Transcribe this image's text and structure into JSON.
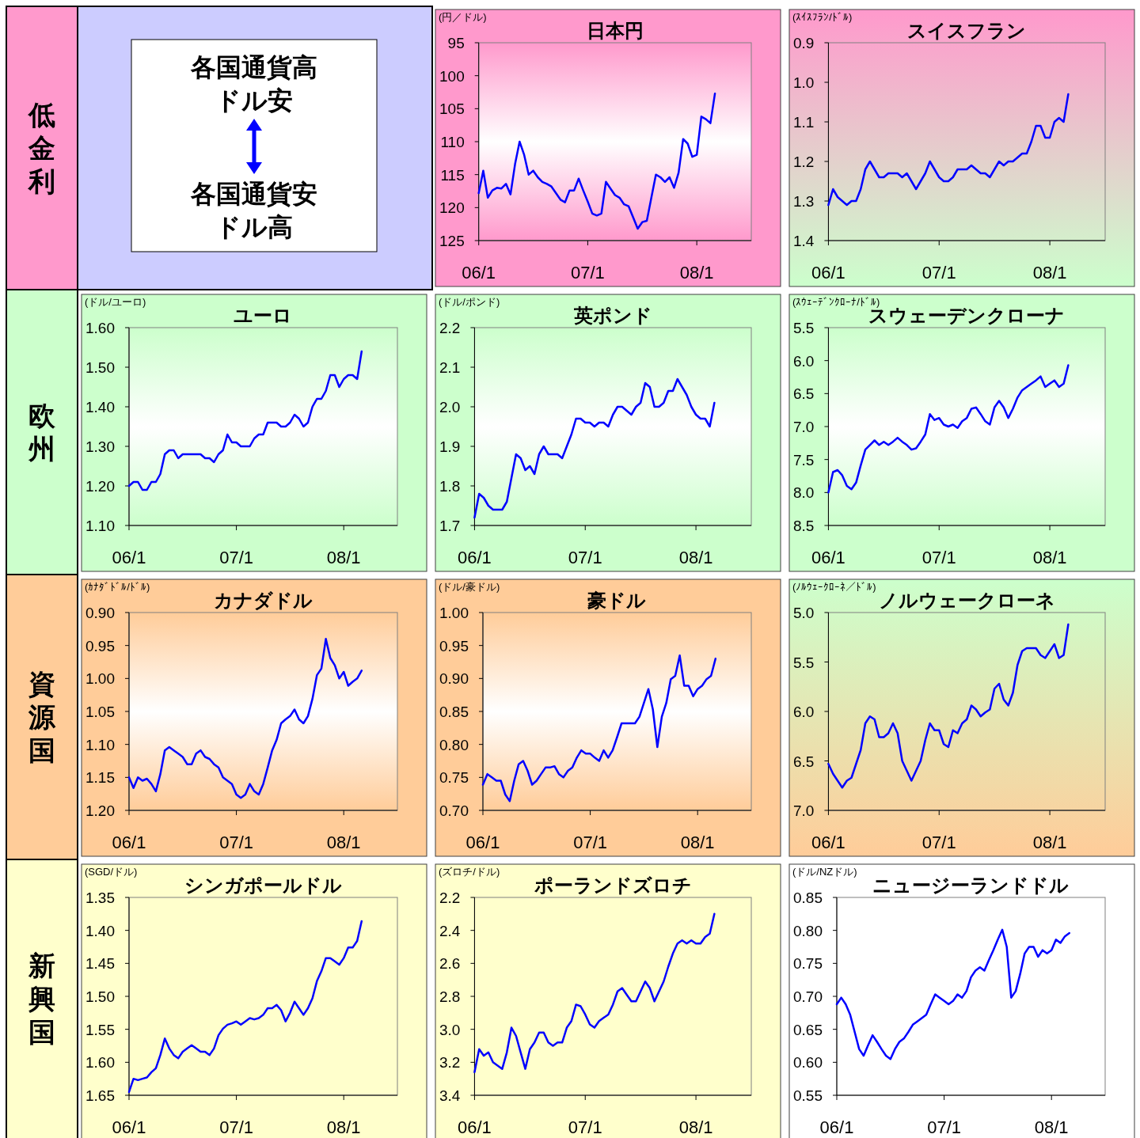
{
  "chart_data": [
    {
      "type": "other",
      "title": "低金利"
    },
    {
      "type": "other",
      "annotations": [
        "各国通貨高",
        "ドル安",
        "各国通貨安",
        "ドル高"
      ]
    },
    {
      "type": "line",
      "title": "日本円",
      "ylabel": "(円／ドル)",
      "color": "#0000ff",
      "ylim": [
        125,
        95
      ],
      "yticks": [
        95,
        100,
        105,
        110,
        115,
        120,
        125
      ],
      "categories": [
        "06/1",
        null,
        null,
        null,
        null,
        null,
        null,
        null,
        null,
        null,
        null,
        null,
        null,
        null,
        null,
        null,
        null,
        null,
        null,
        null,
        null,
        null,
        null,
        null,
        "07/1",
        null,
        null,
        null,
        null,
        null,
        null,
        null,
        null,
        null,
        null,
        null,
        null,
        null,
        null,
        null,
        null,
        null,
        null,
        null,
        null,
        null,
        null,
        null,
        "08/1",
        null,
        null,
        null,
        null,
        null,
        null,
        null,
        null,
        null,
        null,
        null,
        null
      ],
      "values": [
        117.8,
        114.4,
        118.5,
        117.4,
        117.0,
        117.1,
        116.4,
        118.0,
        113.4,
        110.0,
        112.0,
        115.0,
        114.4,
        115.4,
        116.1,
        116.4,
        116.8,
        117.8,
        118.8,
        119.2,
        117.4,
        117.4,
        115.6,
        117.4,
        119.1,
        120.9,
        121.2,
        120.9,
        116.1,
        117.1,
        118.1,
        118.5,
        119.5,
        119.8,
        121.5,
        123.2,
        122.2,
        122.0,
        118.5,
        115.0,
        115.4,
        116.1,
        115.4,
        117.0,
        114.7,
        109.6,
        110.3,
        112.3,
        112.0,
        106.2,
        106.6,
        107.2,
        102.7,
        null,
        null,
        null,
        null,
        null,
        null,
        null,
        null
      ]
    },
    {
      "type": "line",
      "title": "スイスフラン",
      "ylabel": "(ｽｲｽﾌﾗﾝ/ﾄﾞﾙ)",
      "color": "#0000ff",
      "ylim": [
        1.4,
        0.9
      ],
      "yticks": [
        0.9,
        {
          "value": 1,
          "label": "1.0"
        },
        1.1,
        1.2,
        1.3,
        1.4
      ],
      "categories": [
        "06/1",
        null,
        null,
        null,
        null,
        null,
        null,
        null,
        null,
        null,
        null,
        null,
        null,
        null,
        null,
        null,
        null,
        null,
        null,
        null,
        null,
        null,
        null,
        null,
        "07/1",
        null,
        null,
        null,
        null,
        null,
        null,
        null,
        null,
        null,
        null,
        null,
        null,
        null,
        null,
        null,
        null,
        null,
        null,
        null,
        null,
        null,
        null,
        null,
        "08/1",
        null,
        null,
        null,
        null,
        null,
        null,
        null,
        null,
        null,
        null,
        null,
        null
      ],
      "values": [
        1.31,
        1.27,
        1.29,
        1.3,
        1.31,
        1.3,
        1.3,
        1.27,
        1.22,
        1.2,
        1.22,
        1.24,
        1.24,
        1.23,
        1.23,
        1.23,
        1.24,
        1.23,
        1.25,
        1.27,
        1.25,
        1.23,
        1.2,
        1.22,
        1.24,
        1.25,
        1.25,
        1.24,
        1.22,
        1.22,
        1.22,
        1.21,
        1.22,
        1.23,
        1.23,
        1.24,
        1.22,
        1.2,
        1.21,
        1.2,
        1.2,
        1.19,
        1.18,
        1.18,
        1.15,
        1.11,
        1.11,
        1.14,
        1.14,
        1.1,
        1.09,
        1.1,
        1.03,
        null,
        null,
        null,
        null,
        null,
        null,
        null,
        null
      ]
    },
    {
      "type": "other",
      "title": "欧州"
    },
    {
      "type": "line",
      "title": "ユーロ",
      "ylabel": "(ドル/ユーロ)",
      "color": "#0000ff",
      "ylim": [
        1.1,
        1.6
      ],
      "yticks": [
        {
          "value": 1.6,
          "label": "1.60"
        },
        {
          "value": 1.5,
          "label": "1.50"
        },
        {
          "value": 1.4,
          "label": "1.40"
        },
        {
          "value": 1.3,
          "label": "1.30"
        },
        {
          "value": 1.2,
          "label": "1.20"
        },
        {
          "value": 1.1,
          "label": "1.10"
        }
      ],
      "categories": [
        "06/1",
        null,
        null,
        null,
        null,
        null,
        null,
        null,
        null,
        null,
        null,
        null,
        null,
        null,
        null,
        null,
        null,
        null,
        null,
        null,
        null,
        null,
        null,
        null,
        "07/1",
        null,
        null,
        null,
        null,
        null,
        null,
        null,
        null,
        null,
        null,
        null,
        null,
        null,
        null,
        null,
        null,
        null,
        null,
        null,
        null,
        null,
        null,
        null,
        "08/1",
        null,
        null,
        null,
        null,
        null,
        null,
        null,
        null,
        null,
        null,
        null,
        null
      ],
      "values": [
        1.2,
        1.21,
        1.21,
        1.19,
        1.19,
        1.21,
        1.21,
        1.23,
        1.28,
        1.29,
        1.29,
        1.27,
        1.28,
        1.28,
        1.28,
        1.28,
        1.28,
        1.27,
        1.27,
        1.26,
        1.28,
        1.29,
        1.33,
        1.31,
        1.31,
        1.3,
        1.3,
        1.3,
        1.32,
        1.33,
        1.33,
        1.36,
        1.36,
        1.36,
        1.35,
        1.35,
        1.36,
        1.38,
        1.37,
        1.35,
        1.36,
        1.4,
        1.42,
        1.42,
        1.44,
        1.48,
        1.48,
        1.45,
        1.47,
        1.48,
        1.48,
        1.47,
        1.54,
        null,
        null,
        null,
        null,
        null,
        null,
        null,
        null
      ]
    },
    {
      "type": "line",
      "title": "英ポンド",
      "ylabel": "(ドル/ポンド)",
      "color": "#0000ff",
      "ylim": [
        1.7,
        2.2
      ],
      "yticks": [
        2.2,
        2.1,
        {
          "value": 2,
          "label": "2.0"
        },
        1.9,
        1.8,
        1.7
      ],
      "categories": [
        "06/1",
        null,
        null,
        null,
        null,
        null,
        null,
        null,
        null,
        null,
        null,
        null,
        null,
        null,
        null,
        null,
        null,
        null,
        null,
        null,
        null,
        null,
        null,
        null,
        "07/1",
        null,
        null,
        null,
        null,
        null,
        null,
        null,
        null,
        null,
        null,
        null,
        null,
        null,
        null,
        null,
        null,
        null,
        null,
        null,
        null,
        null,
        null,
        null,
        "08/1",
        null,
        null,
        null,
        null,
        null,
        null,
        null,
        null,
        null,
        null,
        null,
        null
      ],
      "values": [
        1.72,
        1.78,
        1.77,
        1.75,
        1.74,
        1.74,
        1.74,
        1.76,
        1.82,
        1.88,
        1.87,
        1.84,
        1.85,
        1.83,
        1.88,
        1.9,
        1.88,
        1.88,
        1.88,
        1.87,
        1.9,
        1.93,
        1.97,
        1.97,
        1.96,
        1.96,
        1.95,
        1.96,
        1.96,
        1.95,
        1.98,
        2.0,
        2.0,
        1.99,
        1.98,
        2.0,
        2.01,
        2.06,
        2.05,
        2.0,
        2.0,
        2.01,
        2.04,
        2.04,
        2.07,
        2.05,
        2.03,
        2.0,
        1.98,
        1.97,
        1.97,
        1.95,
        2.01,
        null,
        null,
        null,
        null,
        null,
        null,
        null,
        null
      ]
    },
    {
      "type": "line",
      "title": "スウェーデンクローナ",
      "ylabel": "(ｽｳｪｰﾃﾞﾝｸﾛｰﾅ/ﾄﾞﾙ)",
      "color": "#0000ff",
      "ylim": [
        8.5,
        5.5
      ],
      "yticks": [
        5.5,
        {
          "value": 6,
          "label": "6.0"
        },
        6.5,
        {
          "value": 7,
          "label": "7.0"
        },
        7.5,
        {
          "value": 8,
          "label": "8.0"
        },
        8.5
      ],
      "categories": [
        "06/1",
        null,
        null,
        null,
        null,
        null,
        null,
        null,
        null,
        null,
        null,
        null,
        null,
        null,
        null,
        null,
        null,
        null,
        null,
        null,
        null,
        null,
        null,
        null,
        "07/1",
        null,
        null,
        null,
        null,
        null,
        null,
        null,
        null,
        null,
        null,
        null,
        null,
        null,
        null,
        null,
        null,
        null,
        null,
        null,
        null,
        null,
        null,
        null,
        "08/1",
        null,
        null,
        null,
        null,
        null,
        null,
        null,
        null,
        null,
        null,
        null,
        null
      ],
      "values": [
        8.0,
        7.69,
        7.66,
        7.74,
        7.9,
        7.95,
        7.85,
        7.59,
        7.35,
        7.28,
        7.21,
        7.28,
        7.23,
        7.28,
        7.23,
        7.17,
        7.23,
        7.28,
        7.35,
        7.33,
        7.23,
        7.12,
        6.81,
        6.9,
        6.87,
        6.97,
        7.0,
        6.97,
        7.02,
        6.92,
        6.87,
        6.73,
        6.71,
        6.81,
        6.92,
        6.97,
        6.71,
        6.61,
        6.71,
        6.87,
        6.73,
        6.56,
        6.45,
        6.4,
        6.35,
        6.3,
        6.24,
        6.4,
        6.35,
        6.3,
        6.4,
        6.35,
        6.07,
        null,
        null,
        null,
        null,
        null,
        null,
        null,
        null
      ]
    },
    {
      "type": "other",
      "title": "資源国"
    },
    {
      "type": "line",
      "title": "カナダドル",
      "ylabel": "(ｶﾅﾀﾞﾄﾞﾙ/ﾄﾞﾙ)",
      "color": "#0000ff",
      "ylim": [
        1.2,
        0.9
      ],
      "yticks": [
        {
          "value": 0.9,
          "label": "0.90"
        },
        0.95,
        {
          "value": 1,
          "label": "1.00"
        },
        1.05,
        {
          "value": 1.1,
          "label": "1.10"
        },
        1.15,
        {
          "value": 1.2,
          "label": "1.20"
        }
      ],
      "categories": [
        "06/1",
        null,
        null,
        null,
        null,
        null,
        null,
        null,
        null,
        null,
        null,
        null,
        null,
        null,
        null,
        null,
        null,
        null,
        null,
        null,
        null,
        null,
        null,
        null,
        "07/1",
        null,
        null,
        null,
        null,
        null,
        null,
        null,
        null,
        null,
        null,
        null,
        null,
        null,
        null,
        null,
        null,
        null,
        null,
        null,
        null,
        null,
        null,
        null,
        "08/1",
        null,
        null,
        null,
        null,
        null,
        null,
        null,
        null,
        null,
        null,
        null,
        null
      ],
      "values": [
        1.15,
        1.166,
        1.15,
        1.155,
        1.152,
        1.16,
        1.171,
        1.145,
        1.109,
        1.104,
        1.109,
        1.114,
        1.119,
        1.13,
        1.13,
        1.114,
        1.109,
        1.119,
        1.122,
        1.13,
        1.135,
        1.15,
        1.155,
        1.16,
        1.176,
        1.181,
        1.176,
        1.16,
        1.171,
        1.176,
        1.16,
        1.135,
        1.109,
        1.093,
        1.068,
        1.062,
        1.057,
        1.047,
        1.062,
        1.068,
        1.057,
        1.031,
        0.995,
        0.985,
        0.94,
        0.969,
        0.98,
        1.0,
        0.99,
        1.011,
        1.005,
        1.0,
        0.988,
        null,
        null,
        null,
        null,
        null,
        null,
        null,
        null
      ]
    },
    {
      "type": "line",
      "title": "豪ドル",
      "ylabel": "(ドル/豪ドル)",
      "color": "#0000ff",
      "ylim": [
        0.7,
        1.0
      ],
      "yticks": [
        {
          "value": 1,
          "label": "1.00"
        },
        0.95,
        {
          "value": 0.9,
          "label": "0.90"
        },
        0.85,
        {
          "value": 0.8,
          "label": "0.80"
        },
        0.75,
        {
          "value": 0.7,
          "label": "0.70"
        }
      ],
      "categories": [
        "06/1",
        null,
        null,
        null,
        null,
        null,
        null,
        null,
        null,
        null,
        null,
        null,
        null,
        null,
        null,
        null,
        null,
        null,
        null,
        null,
        null,
        null,
        null,
        null,
        "07/1",
        null,
        null,
        null,
        null,
        null,
        null,
        null,
        null,
        null,
        null,
        null,
        null,
        null,
        null,
        null,
        null,
        null,
        null,
        null,
        null,
        null,
        null,
        null,
        "08/1",
        null,
        null,
        null,
        null,
        null,
        null,
        null,
        null,
        null,
        null,
        null,
        null
      ],
      "values": [
        0.739,
        0.755,
        0.75,
        0.745,
        0.745,
        0.724,
        0.714,
        0.745,
        0.77,
        0.775,
        0.76,
        0.739,
        0.745,
        0.755,
        0.765,
        0.765,
        0.767,
        0.755,
        0.75,
        0.76,
        0.765,
        0.78,
        0.791,
        0.786,
        0.786,
        0.78,
        0.775,
        0.791,
        0.78,
        0.791,
        0.811,
        0.832,
        0.832,
        0.832,
        0.832,
        0.842,
        0.863,
        0.884,
        0.853,
        0.796,
        0.842,
        0.863,
        0.899,
        0.904,
        0.935,
        0.889,
        0.889,
        0.873,
        0.884,
        0.889,
        0.899,
        0.904,
        0.93,
        null,
        null,
        null,
        null,
        null,
        null,
        null,
        null
      ]
    },
    {
      "type": "line",
      "title": "ノルウェークローネ",
      "ylabel": "(ﾉﾙｳｪｰｸﾛｰﾈ／ﾄﾞﾙ)",
      "color": "#0000ff",
      "ylim": [
        7,
        5
      ],
      "yticks": [
        {
          "value": 5,
          "label": "5.0"
        },
        5.5,
        {
          "value": 6,
          "label": "6.0"
        },
        6.5,
        {
          "value": 7,
          "label": "7.0"
        }
      ],
      "categories": [
        "06/1",
        null,
        null,
        null,
        null,
        null,
        null,
        null,
        null,
        null,
        null,
        null,
        null,
        null,
        null,
        null,
        null,
        null,
        null,
        null,
        null,
        null,
        null,
        null,
        "07/1",
        null,
        null,
        null,
        null,
        null,
        null,
        null,
        null,
        null,
        null,
        null,
        null,
        null,
        null,
        null,
        null,
        null,
        null,
        null,
        null,
        null,
        null,
        null,
        "08/1",
        null,
        null,
        null,
        null,
        null,
        null,
        null,
        null,
        null,
        null,
        null,
        null
      ],
      "values": [
        6.53,
        6.63,
        6.7,
        6.77,
        6.7,
        6.67,
        6.53,
        6.39,
        6.12,
        6.05,
        6.08,
        6.26,
        6.26,
        6.22,
        6.12,
        6.22,
        6.5,
        6.6,
        6.7,
        6.6,
        6.5,
        6.29,
        6.12,
        6.19,
        6.19,
        6.33,
        6.36,
        6.19,
        6.22,
        6.12,
        6.08,
        5.94,
        5.98,
        6.05,
        6.01,
        5.98,
        5.77,
        5.72,
        5.88,
        5.94,
        5.81,
        5.53,
        5.39,
        5.36,
        5.36,
        5.36,
        5.43,
        5.46,
        5.39,
        5.32,
        5.46,
        5.43,
        5.12,
        null,
        null,
        null,
        null,
        null,
        null,
        null,
        null
      ]
    },
    {
      "type": "other",
      "title": "新興国"
    },
    {
      "type": "line",
      "title": "シンガポールドル",
      "ylabel": "(SGD/ドル)",
      "color": "#0000ff",
      "ylim": [
        1.65,
        1.35
      ],
      "yticks": [
        1.35,
        {
          "value": 1.4,
          "label": "1.40"
        },
        1.45,
        {
          "value": 1.5,
          "label": "1.50"
        },
        1.55,
        {
          "value": 1.6,
          "label": "1.60"
        },
        1.65
      ],
      "categories": [
        "06/1",
        null,
        null,
        null,
        null,
        null,
        null,
        null,
        null,
        null,
        null,
        null,
        null,
        null,
        null,
        null,
        null,
        null,
        null,
        null,
        null,
        null,
        null,
        null,
        "07/1",
        null,
        null,
        null,
        null,
        null,
        null,
        null,
        null,
        null,
        null,
        null,
        null,
        null,
        null,
        null,
        null,
        null,
        null,
        null,
        null,
        null,
        null,
        null,
        "08/1",
        null,
        null,
        null,
        null,
        null,
        null,
        null,
        null,
        null,
        null,
        null,
        null
      ],
      "values": [
        1.645,
        1.625,
        1.627,
        1.625,
        1.623,
        1.615,
        1.609,
        1.589,
        1.564,
        1.579,
        1.589,
        1.594,
        1.584,
        1.579,
        1.574,
        1.579,
        1.584,
        1.584,
        1.589,
        1.579,
        1.559,
        1.549,
        1.543,
        1.541,
        1.538,
        1.543,
        1.538,
        1.533,
        1.535,
        1.533,
        1.528,
        1.518,
        1.518,
        1.513,
        1.521,
        1.538,
        1.525,
        1.508,
        1.518,
        1.528,
        1.518,
        1.503,
        1.477,
        1.462,
        1.442,
        1.442,
        1.447,
        1.452,
        1.442,
        1.426,
        1.426,
        1.416,
        1.386,
        null,
        null,
        null,
        null,
        null,
        null,
        null,
        null
      ]
    },
    {
      "type": "line",
      "title": "ポーランドズロチ",
      "ylabel": "(ズロチ/ドル)",
      "color": "#0000ff",
      "ylim": [
        3.4,
        2.2
      ],
      "yticks": [
        2.2,
        2.4,
        2.6,
        2.8,
        {
          "value": 3,
          "label": "3.0"
        },
        3.2,
        3.4
      ],
      "categories": [
        "06/1",
        null,
        null,
        null,
        null,
        null,
        null,
        null,
        null,
        null,
        null,
        null,
        null,
        null,
        null,
        null,
        null,
        null,
        null,
        null,
        null,
        null,
        null,
        null,
        "07/1",
        null,
        null,
        null,
        null,
        null,
        null,
        null,
        null,
        null,
        null,
        null,
        null,
        null,
        null,
        null,
        null,
        null,
        null,
        null,
        null,
        null,
        null,
        null,
        "08/1",
        null,
        null,
        null,
        null,
        null,
        null,
        null,
        null,
        null,
        null,
        null,
        null
      ],
      "values": [
        3.26,
        3.12,
        3.16,
        3.14,
        3.2,
        3.22,
        3.24,
        3.14,
        2.99,
        3.04,
        3.14,
        3.24,
        3.12,
        3.08,
        3.02,
        3.02,
        3.08,
        3.1,
        3.08,
        3.08,
        2.99,
        2.95,
        2.85,
        2.86,
        2.91,
        2.97,
        2.99,
        2.95,
        2.93,
        2.91,
        2.85,
        2.77,
        2.75,
        2.79,
        2.83,
        2.83,
        2.77,
        2.71,
        2.75,
        2.83,
        2.77,
        2.71,
        2.62,
        2.54,
        2.48,
        2.46,
        2.48,
        2.46,
        2.48,
        2.48,
        2.44,
        2.42,
        2.3,
        null,
        null,
        null,
        null,
        null,
        null,
        null,
        null
      ]
    },
    {
      "type": "line",
      "title": "ニュージーランドドル",
      "ylabel": "(ドル/NZドル)",
      "color": "#0000ff",
      "ylim": [
        0.55,
        0.85
      ],
      "yticks": [
        0.85,
        {
          "value": 0.8,
          "label": "0.80"
        },
        0.75,
        {
          "value": 0.7,
          "label": "0.70"
        },
        0.65,
        {
          "value": 0.6,
          "label": "0.60"
        },
        0.55
      ],
      "categories": [
        "06/1",
        null,
        null,
        null,
        null,
        null,
        null,
        null,
        null,
        null,
        null,
        null,
        null,
        null,
        null,
        null,
        null,
        null,
        null,
        null,
        null,
        null,
        null,
        null,
        "07/1",
        null,
        null,
        null,
        null,
        null,
        null,
        null,
        null,
        null,
        null,
        null,
        null,
        null,
        null,
        null,
        null,
        null,
        null,
        null,
        null,
        null,
        null,
        null,
        "08/1",
        null,
        null,
        null,
        null,
        null,
        null,
        null,
        null,
        null,
        null,
        null,
        null
      ],
      "values": [
        0.688,
        0.698,
        0.688,
        0.672,
        0.646,
        0.62,
        0.61,
        0.626,
        0.641,
        0.631,
        0.62,
        0.61,
        0.605,
        0.62,
        0.631,
        0.636,
        0.646,
        0.657,
        0.662,
        0.667,
        0.672,
        0.688,
        0.703,
        0.698,
        0.693,
        0.688,
        0.693,
        0.703,
        0.698,
        0.708,
        0.729,
        0.739,
        0.744,
        0.739,
        0.755,
        0.77,
        0.786,
        0.801,
        0.775,
        0.698,
        0.708,
        0.734,
        0.765,
        0.775,
        0.775,
        0.76,
        0.77,
        0.765,
        0.77,
        0.786,
        0.781,
        0.791,
        0.796,
        null,
        null,
        null,
        null,
        null,
        null,
        null,
        null
      ]
    }
  ]
}
